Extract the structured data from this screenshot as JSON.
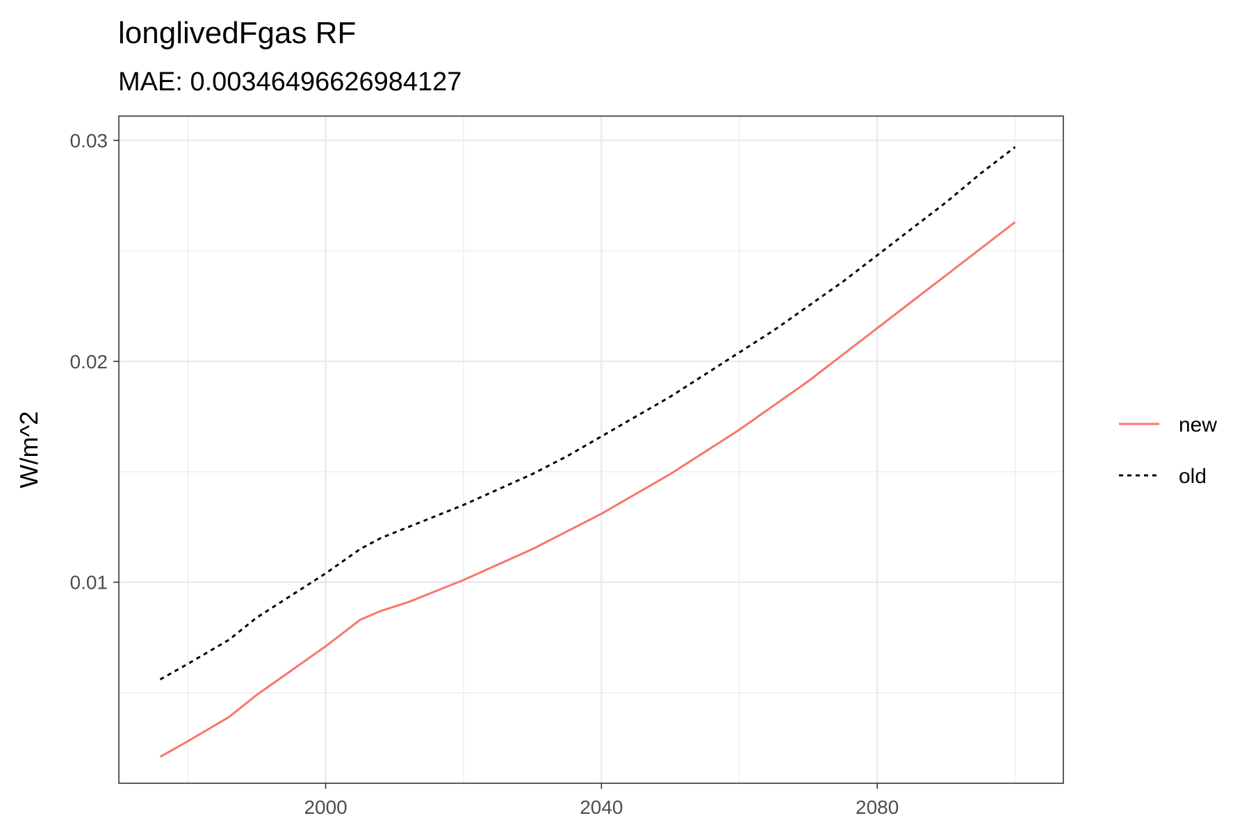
{
  "chart_data": {
    "type": "line",
    "title": "longlivedFgas RF",
    "subtitle": "MAE: 0.00346496626984127",
    "xlabel": "",
    "ylabel": "W/m^2",
    "xlim": [
      1970,
      2107
    ],
    "ylim": [
      0.0009,
      0.0311
    ],
    "x_ticks": [
      2000,
      2040,
      2080
    ],
    "x_tick_labels": [
      "2000",
      "2040",
      "2080"
    ],
    "y_ticks": [
      0.01,
      0.02,
      0.03
    ],
    "y_tick_labels": [
      "0.01",
      "0.02",
      "0.03"
    ],
    "grid": true,
    "legend_position": "right",
    "series": [
      {
        "name": "new",
        "color": "#F8766D",
        "dash": "solid",
        "x": [
          1976,
          1980,
          1986,
          1990,
          1995,
          2000,
          2005,
          2008,
          2012,
          2016,
          2020,
          2025,
          2030,
          2035,
          2040,
          2045,
          2050,
          2055,
          2060,
          2065,
          2070,
          2075,
          2080,
          2085,
          2090,
          2095,
          2100
        ],
        "y": [
          0.0021,
          0.0028,
          0.0039,
          0.0049,
          0.006,
          0.0071,
          0.0083,
          0.0087,
          0.0091,
          0.0096,
          0.0101,
          0.0108,
          0.0115,
          0.0123,
          0.0131,
          0.014,
          0.0149,
          0.0159,
          0.0169,
          0.018,
          0.0191,
          0.0203,
          0.0215,
          0.0227,
          0.0239,
          0.0251,
          0.0263
        ]
      },
      {
        "name": "old",
        "color": "#000000",
        "dash": "dotted",
        "x": [
          1976,
          1980,
          1986,
          1990,
          1995,
          2000,
          2005,
          2008,
          2012,
          2016,
          2020,
          2025,
          2030,
          2035,
          2040,
          2045,
          2050,
          2055,
          2060,
          2065,
          2070,
          2075,
          2080,
          2085,
          2090,
          2095,
          2100
        ],
        "y": [
          0.0056,
          0.0063,
          0.0074,
          0.0084,
          0.0094,
          0.0104,
          0.0115,
          0.012,
          0.0125,
          0.013,
          0.0135,
          0.0142,
          0.0149,
          0.0157,
          0.0166,
          0.0175,
          0.0184,
          0.0194,
          0.0204,
          0.0214,
          0.0225,
          0.0236,
          0.0248,
          0.026,
          0.0272,
          0.0285,
          0.0297
        ]
      }
    ]
  }
}
